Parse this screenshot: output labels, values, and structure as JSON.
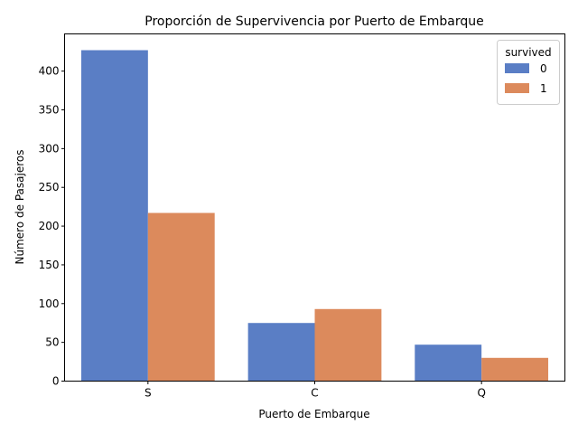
{
  "chart_data": {
    "type": "bar",
    "title": "Proporción de Supervivencia por Puerto de Embarque",
    "xlabel": "Puerto de Embarque",
    "ylabel": "Número de Pasajeros",
    "categories": [
      "S",
      "C",
      "Q"
    ],
    "series": [
      {
        "name": "0",
        "values": [
          427,
          75,
          47
        ],
        "color": "#5a7ec5"
      },
      {
        "name": "1",
        "values": [
          217,
          93,
          30
        ],
        "color": "#dc8a5c"
      }
    ],
    "ylim": [
      0,
      448
    ],
    "yticks": [
      0,
      50,
      100,
      150,
      200,
      250,
      300,
      350,
      400
    ],
    "grid": false,
    "legend": {
      "title": "survived",
      "position": "top-right"
    }
  }
}
